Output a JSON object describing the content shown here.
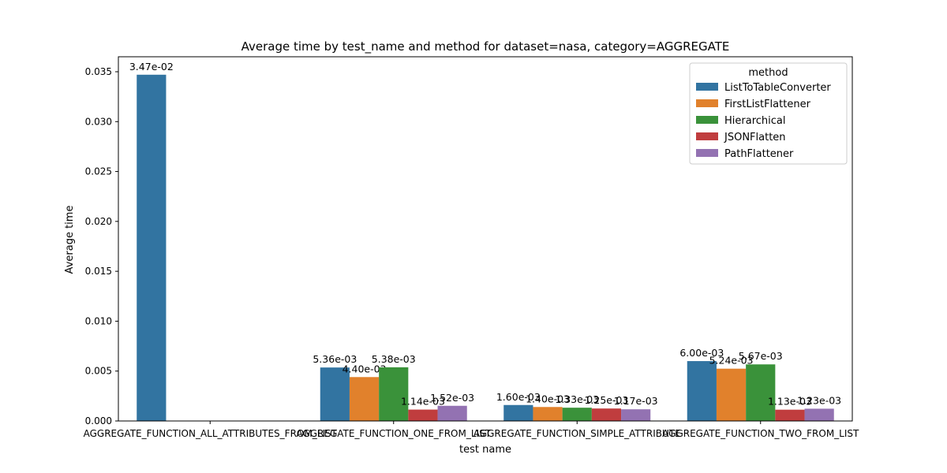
{
  "chart_data": {
    "type": "bar",
    "title": "Average time by test_name and method for dataset=nasa, category=AGGREGATE",
    "xlabel": "test name",
    "ylabel": "Average time",
    "ylim": [
      0,
      0.0365
    ],
    "yticks": [
      0.0,
      0.005,
      0.01,
      0.015,
      0.02,
      0.025,
      0.03,
      0.035
    ],
    "ytick_labels": [
      "0.000",
      "0.005",
      "0.010",
      "0.015",
      "0.020",
      "0.025",
      "0.030",
      "0.035"
    ],
    "grid": false,
    "categories": [
      "AGGREGATE_FUNCTION_ALL_ATTRIBUTES_FROM_LIST",
      "AGGREGATE_FUNCTION_ONE_FROM_LIST",
      "AGGREGATE_FUNCTION_SIMPLE_ATTRIBUTE",
      "AGGREGATE_FUNCTION_TWO_FROM_LIST"
    ],
    "legend": {
      "title": "method",
      "placement": "top-right"
    },
    "series": [
      {
        "name": "ListToTableConverter",
        "color": "#3274a1",
        "values": [
          0.0347,
          0.00536,
          0.0016,
          0.006
        ],
        "labels": [
          "3.47e-02",
          "5.36e-03",
          "1.60e-03",
          "6.00e-03"
        ]
      },
      {
        "name": "FirstListFlattener",
        "color": "#e1812c",
        "values": [
          null,
          0.0044,
          0.0014,
          0.00524
        ],
        "labels": [
          null,
          "4.40e-03",
          "1.40e-03",
          "5.24e-03"
        ]
      },
      {
        "name": "Hierarchical",
        "color": "#3a923a",
        "values": [
          null,
          0.00538,
          0.00133,
          0.00567
        ],
        "labels": [
          null,
          "5.38e-03",
          "1.33e-03",
          "5.67e-03"
        ]
      },
      {
        "name": "JSONFlatten",
        "color": "#c03d3e",
        "values": [
          null,
          0.00114,
          0.00125,
          0.00113
        ],
        "labels": [
          null,
          "1.14e-03",
          "1.25e-03",
          "1.13e-03"
        ]
      },
      {
        "name": "PathFlattener",
        "color": "#9372b2",
        "values": [
          null,
          0.00152,
          0.00117,
          0.00123
        ],
        "labels": [
          null,
          "1.52e-03",
          "1.17e-03",
          "1.23e-03"
        ]
      }
    ]
  }
}
